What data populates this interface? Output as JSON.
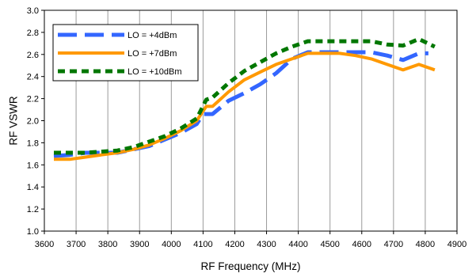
{
  "chart_data": {
    "type": "line",
    "title": "",
    "xlabel": "RF Frequency (MHz)",
    "ylabel": "RF VSWR",
    "xlim": [
      3600,
      4900
    ],
    "ylim": [
      1.0,
      3.0
    ],
    "xticks": [
      "3600",
      "3700",
      "3800",
      "3900",
      "4000",
      "4100",
      "4200",
      "4300",
      "4400",
      "4500",
      "4600",
      "4700",
      "4800",
      "4900"
    ],
    "yticks": [
      "1.0",
      "1.2",
      "1.4",
      "1.6",
      "1.8",
      "2.0",
      "2.2",
      "2.4",
      "2.6",
      "2.8",
      "3.0"
    ],
    "grid": "vertical",
    "legend_position": "top-left",
    "series": [
      {
        "name": "LO = +4dBm",
        "color": "#3366ff",
        "style": "long-dash",
        "points": [
          [
            3630,
            1.68
          ],
          [
            3680,
            1.69
          ],
          [
            3730,
            1.71
          ],
          [
            3830,
            1.71
          ],
          [
            3880,
            1.74
          ],
          [
            3930,
            1.77
          ],
          [
            3980,
            1.83
          ],
          [
            4030,
            1.89
          ],
          [
            4080,
            1.97
          ],
          [
            4100,
            2.06
          ],
          [
            4130,
            2.06
          ],
          [
            4180,
            2.18
          ],
          [
            4230,
            2.25
          ],
          [
            4280,
            2.33
          ],
          [
            4330,
            2.43
          ],
          [
            4380,
            2.56
          ],
          [
            4430,
            2.62
          ],
          [
            4480,
            2.62
          ],
          [
            4530,
            2.62
          ],
          [
            4580,
            2.62
          ],
          [
            4630,
            2.62
          ],
          [
            4680,
            2.59
          ],
          [
            4730,
            2.55
          ],
          [
            4780,
            2.61
          ],
          [
            4810,
            2.61
          ]
        ]
      },
      {
        "name": "LO = +7dBm",
        "color": "#ff9900",
        "style": "solid",
        "points": [
          [
            3630,
            1.65
          ],
          [
            3680,
            1.65
          ],
          [
            3730,
            1.67
          ],
          [
            3780,
            1.69
          ],
          [
            3830,
            1.71
          ],
          [
            3880,
            1.74
          ],
          [
            3930,
            1.78
          ],
          [
            3980,
            1.84
          ],
          [
            4030,
            1.91
          ],
          [
            4080,
            2.0
          ],
          [
            4110,
            2.13
          ],
          [
            4130,
            2.13
          ],
          [
            4180,
            2.26
          ],
          [
            4230,
            2.37
          ],
          [
            4280,
            2.44
          ],
          [
            4330,
            2.51
          ],
          [
            4380,
            2.56
          ],
          [
            4430,
            2.61
          ],
          [
            4480,
            2.61
          ],
          [
            4530,
            2.61
          ],
          [
            4580,
            2.59
          ],
          [
            4630,
            2.56
          ],
          [
            4680,
            2.51
          ],
          [
            4730,
            2.46
          ],
          [
            4780,
            2.51
          ],
          [
            4830,
            2.46
          ]
        ]
      },
      {
        "name": "LO = +10dBm",
        "color": "#007700",
        "style": "dash",
        "points": [
          [
            3630,
            1.71
          ],
          [
            3680,
            1.71
          ],
          [
            3730,
            1.71
          ],
          [
            3780,
            1.72
          ],
          [
            3830,
            1.73
          ],
          [
            3880,
            1.76
          ],
          [
            3930,
            1.81
          ],
          [
            3980,
            1.86
          ],
          [
            4030,
            1.93
          ],
          [
            4080,
            2.02
          ],
          [
            4110,
            2.19
          ],
          [
            4130,
            2.21
          ],
          [
            4180,
            2.34
          ],
          [
            4230,
            2.45
          ],
          [
            4280,
            2.53
          ],
          [
            4330,
            2.61
          ],
          [
            4380,
            2.67
          ],
          [
            4430,
            2.72
          ],
          [
            4480,
            2.72
          ],
          [
            4530,
            2.72
          ],
          [
            4580,
            2.72
          ],
          [
            4630,
            2.72
          ],
          [
            4680,
            2.69
          ],
          [
            4730,
            2.68
          ],
          [
            4780,
            2.74
          ],
          [
            4830,
            2.67
          ]
        ]
      }
    ]
  }
}
